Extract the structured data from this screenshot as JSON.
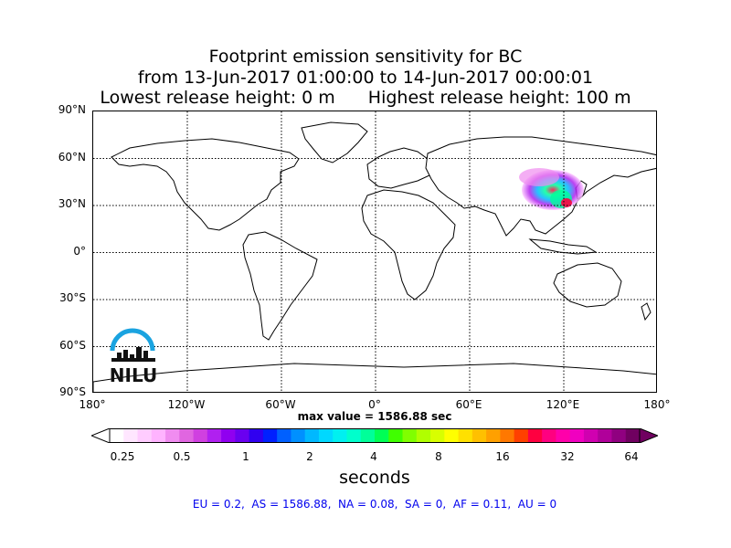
{
  "title": {
    "line1": "Footprint emission sensitivity for BC",
    "line2": "from 13-Jun-2017 01:00:00 to 14-Jun-2017 00:00:01",
    "lowest": "Lowest release height: 0 m",
    "highest": "Highest release height: 100 m"
  },
  "map": {
    "lat_labels": [
      "90°N",
      "60°N",
      "30°N",
      "0°",
      "30°S",
      "60°S",
      "90°S"
    ],
    "lon_labels": [
      "180°",
      "120°W",
      "60°W",
      "0°",
      "60°E",
      "120°E",
      "180°"
    ],
    "grid_style": "dotted",
    "land_color": "#ffffff",
    "coast_color": "#000000",
    "footprint_region": "East Asia"
  },
  "max_value": "max value = 1586.88 sec",
  "colorbar": {
    "ticks": [
      "0.25",
      "0.5",
      "1",
      "2",
      "4",
      "8",
      "16",
      "32",
      "64"
    ],
    "unit": "seconds",
    "colors": [
      "#ffffff",
      "#ffe6ff",
      "#ffccff",
      "#ffb3ff",
      "#f08cf0",
      "#e066e0",
      "#d040e0",
      "#b020f0",
      "#9000f0",
      "#6a00f0",
      "#3000f0",
      "#0020ff",
      "#0060ff",
      "#0090ff",
      "#00b8ff",
      "#00d8ff",
      "#00f0f0",
      "#00ffcc",
      "#00ff99",
      "#00ff55",
      "#40ff00",
      "#80ff00",
      "#b0ff00",
      "#d8ff00",
      "#ffff00",
      "#ffe000",
      "#ffc000",
      "#ffa000",
      "#ff7800",
      "#ff4000",
      "#ff0040",
      "#ff0080",
      "#ff00aa",
      "#f000c0",
      "#d000b0",
      "#b0009a",
      "#900080",
      "#700060"
    ]
  },
  "regions_text": "EU = 0.2,  AS = 1586.88,  NA = 0.08,  SA = 0,  AF = 0.11,  AU = 0",
  "logo": {
    "text": "NILU",
    "arc_color": "#1aa3e0",
    "text_color": "#111111"
  }
}
